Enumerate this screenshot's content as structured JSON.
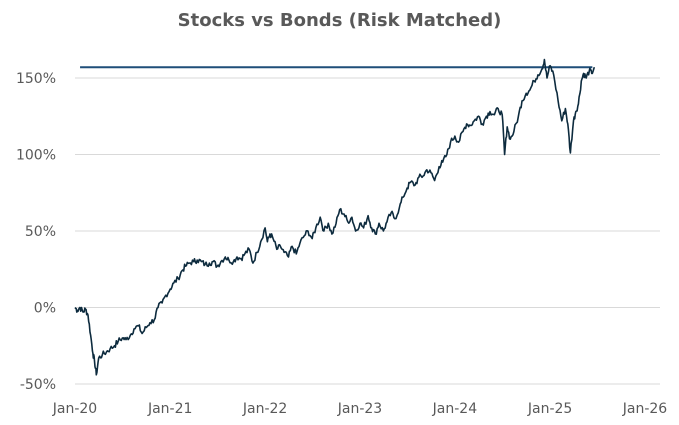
{
  "chart_data": {
    "type": "line",
    "title": "Stocks vs Bonds (Risk Matched)",
    "xlabel": "",
    "ylabel": "",
    "x_ticks": [
      "Jan-20",
      "Jan-21",
      "Jan-22",
      "Jan-23",
      "Jan-24",
      "Jan-25",
      "Jan-26"
    ],
    "y_ticks": [
      "-50%",
      "0%",
      "50%",
      "100%",
      "150%"
    ],
    "ylim": [
      -50,
      150
    ],
    "xlim": [
      "2020-01",
      "2026-01"
    ],
    "grid": "horizontal",
    "legend": "none",
    "colors": {
      "series": "#0d2b3e",
      "reference": "#1f4e79",
      "grid": "#d9d9d9",
      "text": "#595959"
    },
    "reference_line": {
      "y": 157,
      "x_start": "2020-02",
      "x_end": "2025-06"
    },
    "series": [
      {
        "values": [
          [
            "2020-01-01",
            0
          ],
          [
            "2020-01-10",
            -2
          ],
          [
            "2020-01-20",
            0
          ],
          [
            "2020-02-01",
            -3
          ],
          [
            "2020-02-10",
            -1
          ],
          [
            "2020-02-20",
            -5
          ],
          [
            "2020-03-01",
            -18
          ],
          [
            "2020-03-10",
            -30
          ],
          [
            "2020-03-16",
            -35
          ],
          [
            "2020-03-23",
            -44
          ],
          [
            "2020-04-01",
            -33
          ],
          [
            "2020-04-15",
            -31
          ],
          [
            "2020-05-01",
            -29
          ],
          [
            "2020-05-15",
            -27
          ],
          [
            "2020-06-01",
            -25
          ],
          [
            "2020-06-15",
            -22
          ],
          [
            "2020-07-01",
            -20
          ],
          [
            "2020-07-15",
            -21
          ],
          [
            "2020-08-01",
            -18
          ],
          [
            "2020-08-15",
            -14
          ],
          [
            "2020-09-01",
            -12
          ],
          [
            "2020-09-15",
            -17
          ],
          [
            "2020-10-01",
            -13
          ],
          [
            "2020-10-15",
            -10
          ],
          [
            "2020-11-01",
            -8
          ],
          [
            "2020-11-15",
            0
          ],
          [
            "2020-12-01",
            3
          ],
          [
            "2020-12-15",
            8
          ],
          [
            "2021-01-01",
            12
          ],
          [
            "2021-01-15",
            16
          ],
          [
            "2021-02-01",
            19
          ],
          [
            "2021-02-15",
            24
          ],
          [
            "2021-03-01",
            27
          ],
          [
            "2021-03-15",
            29
          ],
          [
            "2021-04-01",
            30
          ],
          [
            "2021-04-15",
            31
          ],
          [
            "2021-05-01",
            30
          ],
          [
            "2021-05-15",
            28
          ],
          [
            "2021-06-01",
            29
          ],
          [
            "2021-06-15",
            30
          ],
          [
            "2021-07-01",
            27
          ],
          [
            "2021-07-15",
            30
          ],
          [
            "2021-08-01",
            33
          ],
          [
            "2021-08-15",
            31
          ],
          [
            "2021-09-01",
            30
          ],
          [
            "2021-09-15",
            33
          ],
          [
            "2021-10-01",
            32
          ],
          [
            "2021-10-15",
            35
          ],
          [
            "2021-11-01",
            38
          ],
          [
            "2021-11-15",
            29
          ],
          [
            "2021-12-01",
            36
          ],
          [
            "2021-12-15",
            43
          ],
          [
            "2022-01-01",
            52
          ],
          [
            "2022-01-10",
            43
          ],
          [
            "2022-01-20",
            48
          ],
          [
            "2022-02-01",
            45
          ],
          [
            "2022-02-15",
            38
          ],
          [
            "2022-03-01",
            40
          ],
          [
            "2022-03-15",
            36
          ],
          [
            "2022-04-01",
            33
          ],
          [
            "2022-04-15",
            40
          ],
          [
            "2022-05-01",
            35
          ],
          [
            "2022-05-15",
            42
          ],
          [
            "2022-06-01",
            47
          ],
          [
            "2022-06-15",
            50
          ],
          [
            "2022-07-01",
            45
          ],
          [
            "2022-07-15",
            52
          ],
          [
            "2022-08-01",
            59
          ],
          [
            "2022-08-15",
            50
          ],
          [
            "2022-09-01",
            55
          ],
          [
            "2022-09-15",
            48
          ],
          [
            "2022-10-01",
            55
          ],
          [
            "2022-10-15",
            64
          ],
          [
            "2022-11-01",
            61
          ],
          [
            "2022-11-15",
            56
          ],
          [
            "2022-12-01",
            59
          ],
          [
            "2022-12-15",
            50
          ],
          [
            "2023-01-01",
            55
          ],
          [
            "2023-01-15",
            52
          ],
          [
            "2023-02-01",
            60
          ],
          [
            "2023-02-15",
            52
          ],
          [
            "2023-03-01",
            48
          ],
          [
            "2023-03-15",
            55
          ],
          [
            "2023-04-01",
            50
          ],
          [
            "2023-04-15",
            56
          ],
          [
            "2023-05-01",
            62
          ],
          [
            "2023-05-15",
            58
          ],
          [
            "2023-06-01",
            65
          ],
          [
            "2023-06-15",
            72
          ],
          [
            "2023-07-01",
            78
          ],
          [
            "2023-07-15",
            82
          ],
          [
            "2023-08-01",
            80
          ],
          [
            "2023-08-15",
            85
          ],
          [
            "2023-09-01",
            86
          ],
          [
            "2023-09-15",
            90
          ],
          [
            "2023-10-01",
            88
          ],
          [
            "2023-10-15",
            83
          ],
          [
            "2023-11-01",
            92
          ],
          [
            "2023-11-15",
            95
          ],
          [
            "2023-12-01",
            100
          ],
          [
            "2023-12-15",
            108
          ],
          [
            "2024-01-01",
            112
          ],
          [
            "2024-01-15",
            108
          ],
          [
            "2024-02-01",
            115
          ],
          [
            "2024-02-15",
            120
          ],
          [
            "2024-03-01",
            119
          ],
          [
            "2024-03-15",
            122
          ],
          [
            "2024-04-01",
            125
          ],
          [
            "2024-04-15",
            120
          ],
          [
            "2024-05-01",
            125
          ],
          [
            "2024-05-15",
            128
          ],
          [
            "2024-06-01",
            126
          ],
          [
            "2024-06-15",
            130
          ],
          [
            "2024-07-01",
            126
          ],
          [
            "2024-07-10",
            100
          ],
          [
            "2024-07-20",
            118
          ],
          [
            "2024-08-01",
            110
          ],
          [
            "2024-08-15",
            115
          ],
          [
            "2024-09-01",
            125
          ],
          [
            "2024-09-15",
            135
          ],
          [
            "2024-10-01",
            140
          ],
          [
            "2024-10-15",
            142
          ],
          [
            "2024-11-01",
            148
          ],
          [
            "2024-11-15",
            152
          ],
          [
            "2024-12-01",
            156
          ],
          [
            "2024-12-10",
            162
          ],
          [
            "2024-12-20",
            150
          ],
          [
            "2025-01-01",
            158
          ],
          [
            "2025-01-15",
            152
          ],
          [
            "2025-02-01",
            135
          ],
          [
            "2025-02-15",
            122
          ],
          [
            "2025-03-01",
            130
          ],
          [
            "2025-03-10",
            120
          ],
          [
            "2025-03-20",
            101
          ],
          [
            "2025-04-01",
            122
          ],
          [
            "2025-04-10",
            128
          ],
          [
            "2025-04-20",
            133
          ],
          [
            "2025-05-01",
            148
          ],
          [
            "2025-05-10",
            153
          ],
          [
            "2025-05-20",
            150
          ],
          [
            "2025-06-01",
            155
          ],
          [
            "2025-06-10",
            153
          ],
          [
            "2025-06-20",
            157
          ]
        ]
      }
    ]
  }
}
